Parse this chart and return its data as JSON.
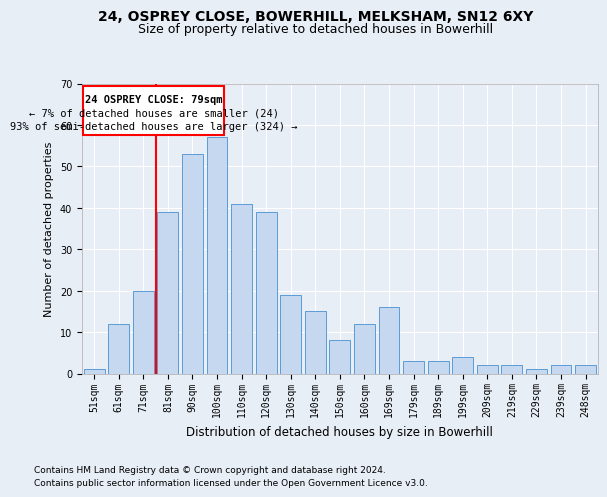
{
  "title1": "24, OSPREY CLOSE, BOWERHILL, MELKSHAM, SN12 6XY",
  "title2": "Size of property relative to detached houses in Bowerhill",
  "xlabel": "Distribution of detached houses by size in Bowerhill",
  "ylabel": "Number of detached properties",
  "categories": [
    "51sqm",
    "61sqm",
    "71sqm",
    "81sqm",
    "90sqm",
    "100sqm",
    "110sqm",
    "120sqm",
    "130sqm",
    "140sqm",
    "150sqm",
    "160sqm",
    "169sqm",
    "179sqm",
    "189sqm",
    "199sqm",
    "209sqm",
    "219sqm",
    "229sqm",
    "239sqm",
    "248sqm"
  ],
  "values": [
    1,
    12,
    20,
    39,
    53,
    57,
    41,
    39,
    19,
    15,
    8,
    12,
    16,
    3,
    3,
    4,
    2,
    2,
    1,
    2,
    2
  ],
  "bar_color": "#c5d8f0",
  "bar_edge_color": "#5b9bd5",
  "red_line_index": 2.5,
  "annotation_line1": "24 OSPREY CLOSE: 79sqm",
  "annotation_line2": "← 7% of detached houses are smaller (24)",
  "annotation_line3": "93% of semi-detached houses are larger (324) →",
  "footnote1": "Contains HM Land Registry data © Crown copyright and database right 2024.",
  "footnote2": "Contains public sector information licensed under the Open Government Licence v3.0.",
  "ylim": [
    0,
    70
  ],
  "yticks": [
    0,
    10,
    20,
    30,
    40,
    50,
    60,
    70
  ],
  "bg_color": "#e8eef6",
  "plot_bg_color": "#e8eef6",
  "grid_color": "#ffffff",
  "title1_fontsize": 10,
  "title2_fontsize": 9,
  "xlabel_fontsize": 8.5,
  "ylabel_fontsize": 8,
  "tick_fontsize": 7,
  "annot_fontsize": 7.5,
  "footnote_fontsize": 6.5
}
